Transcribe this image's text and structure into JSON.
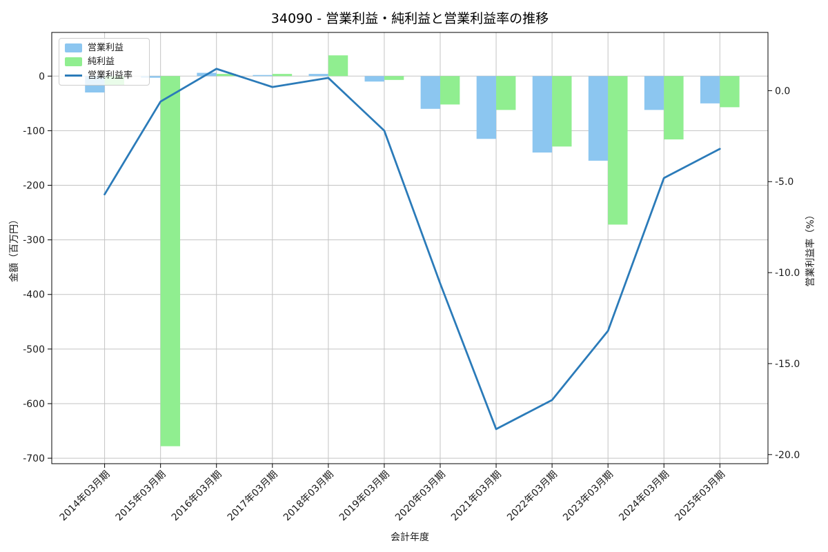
{
  "figure": {
    "title": "34090 - 営業利益・純利益と営業利益率の推移"
  },
  "axes": {
    "x_label": "会計年度",
    "y_left_label": "金額（百万円）",
    "y_right_label": "営業利益率（%）"
  },
  "legend": {
    "position": "upper left",
    "items": [
      {
        "label": "営業利益",
        "kind": "patch",
        "color": "#8cc6f0"
      },
      {
        "label": "純利益",
        "kind": "patch",
        "color": "#90ee90"
      },
      {
        "label": "営業利益率",
        "kind": "line",
        "color": "#2b7bb9"
      }
    ]
  },
  "chart_data": {
    "type": "combo",
    "title": "34090 - 営業利益・純利益と営業利益率の推移",
    "xlabel": "会計年度",
    "categories": [
      "2014年03月期",
      "2015年03月期",
      "2016年03月期",
      "2017年03月期",
      "2018年03月期",
      "2019年03月期",
      "2020年03月期",
      "2021年03月期",
      "2022年03月期",
      "2023年03月期",
      "2024年03月期",
      "2025年03月期"
    ],
    "series": [
      {
        "name": "営業利益",
        "type": "bar",
        "axis": "left",
        "color": "#8cc6f0",
        "values": [
          -30,
          -3,
          6,
          2,
          4,
          -10,
          -60,
          -115,
          -140,
          -155,
          -62,
          -50
        ]
      },
      {
        "name": "純利益",
        "type": "bar",
        "axis": "left",
        "color": "#90ee90",
        "values": [
          -16,
          -678,
          4,
          4,
          38,
          -7,
          -52,
          -62,
          -129,
          -272,
          -116,
          -57
        ]
      },
      {
        "name": "営業利益率",
        "type": "line",
        "axis": "right",
        "color": "#2b7bb9",
        "values": [
          -5.7,
          -0.6,
          1.2,
          0.2,
          0.7,
          -2.2,
          -10.6,
          -18.6,
          -17.0,
          -13.2,
          -4.8,
          -3.2
        ]
      }
    ],
    "left_axis": {
      "label": "金額（百万円）",
      "units": "百万円",
      "ticks": [
        0,
        -100,
        -200,
        -300,
        -400,
        -500,
        -600,
        -700
      ],
      "tick_labels": [
        "0",
        "-100",
        "-200",
        "-300",
        "-400",
        "-500",
        "-600",
        "-700"
      ],
      "range": [
        -710,
        80
      ]
    },
    "right_axis": {
      "label": "営業利益率（%）",
      "units": "%",
      "ticks": [
        0,
        -5,
        -10,
        -15,
        -20
      ],
      "tick_labels": [
        "0.0",
        "-5.0",
        "-10.0",
        "-15.0",
        "-20.0"
      ],
      "range": [
        -20.5,
        3.2
      ]
    },
    "grid": true,
    "grid_color": "#c3c3c3",
    "x_tick_rotation": 45,
    "legend_position": "upper left"
  }
}
